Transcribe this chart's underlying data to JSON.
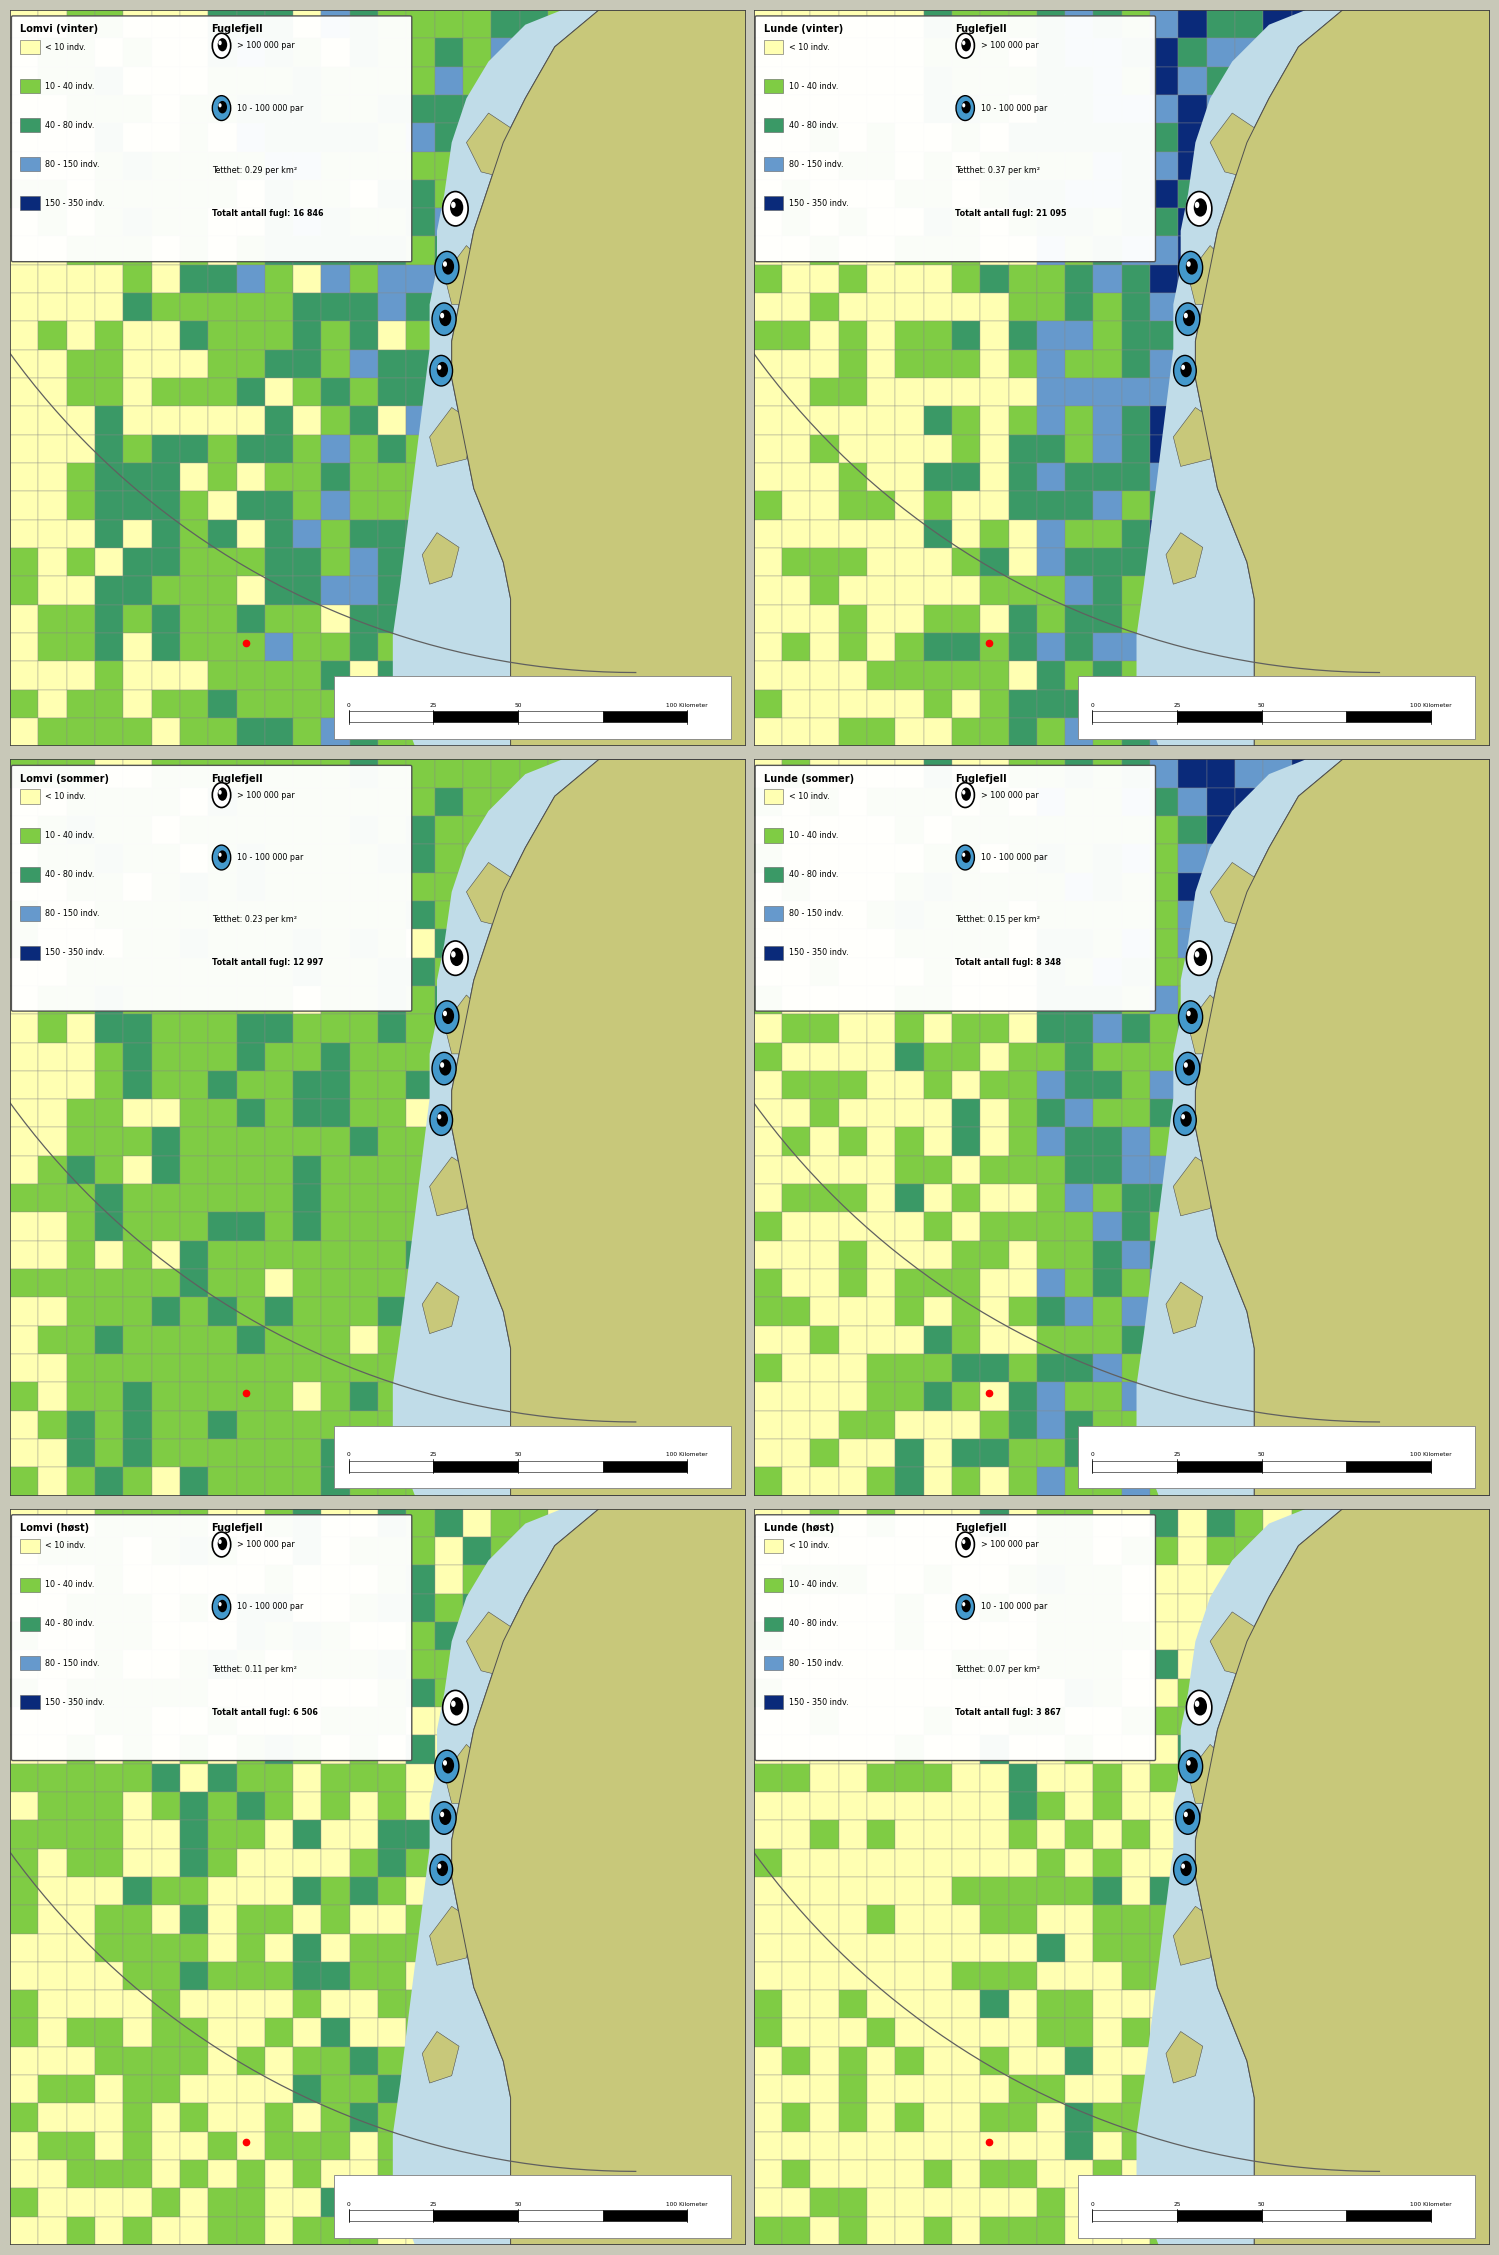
{
  "panels": [
    {
      "title": "Lomvi (vinter)",
      "fuglefjell_title": "Fuglefjell",
      "tetthet": "0.29",
      "totalt": "16 846",
      "season": "vinter",
      "species": "lomvi",
      "row": 0,
      "col": 0
    },
    {
      "title": "Lunde (vinter)",
      "fuglefjell_title": "Fuglefjell",
      "tetthet": "0.37",
      "totalt": "21 095",
      "season": "vinter",
      "species": "lunde",
      "row": 0,
      "col": 1
    },
    {
      "title": "Lomvi (sommer)",
      "fuglefjell_title": "Fuglefjell",
      "tetthet": "0.23",
      "totalt": "12 997",
      "season": "sommer",
      "species": "lomvi",
      "row": 1,
      "col": 0
    },
    {
      "title": "Lunde (sommer)",
      "fuglefjell_title": "Fuglefjell",
      "tetthet": "0.15",
      "totalt": "8 348",
      "season": "sommer",
      "species": "lunde",
      "row": 1,
      "col": 1
    },
    {
      "title": "Lomvi (høst)",
      "fuglefjell_title": "Fuglefjell",
      "tetthet": "0.11",
      "totalt": "6 506",
      "season": "host",
      "species": "lomvi",
      "row": 2,
      "col": 0
    },
    {
      "title": "Lunde (høst)",
      "fuglefjell_title": "Fuglefjell",
      "tetthet": "0.07",
      "totalt": "3 867",
      "season": "host",
      "species": "lunde",
      "row": 2,
      "col": 1
    }
  ],
  "color_order": [
    "#FFFFB2",
    "#7FCC44",
    "#3A9966",
    "#6699CC",
    "#0A2A7A"
  ],
  "label_order": [
    "< 10 indv.",
    "10 - 40 indv.",
    "40 - 80 indv.",
    "80 - 150 indv.",
    "150 - 350 indv."
  ],
  "land_color": "#C8C87A",
  "sea_color": "#AACCDD",
  "shallow_sea_color": "#C0DCE8",
  "grid_color": "#888888",
  "figure_bg": "#C8C8B8",
  "border_color": "#505050",
  "NR": 26,
  "NC": 26
}
